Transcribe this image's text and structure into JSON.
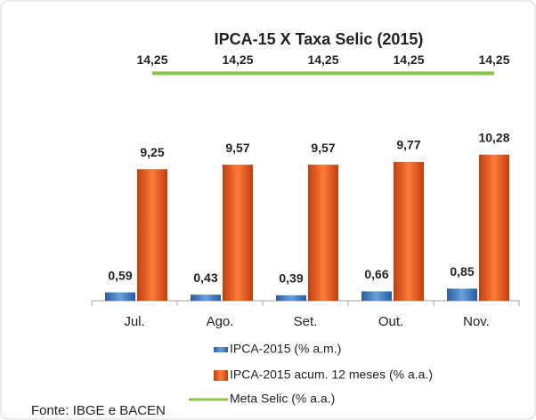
{
  "chart_data": {
    "type": "bar",
    "title": "IPCA-15 X Taxa Selic (2015)",
    "note": "Fonte: IBGE e BACEN",
    "categories": [
      "Jul.",
      "Ago.",
      "Set.",
      "Out.",
      "Nov."
    ],
    "ylim": [
      0,
      17.4
    ],
    "y2lim": [
      0,
      15.5
    ],
    "series": [
      {
        "name": "IPCA-2015 (% a.m.)",
        "color": "#3d7cc4",
        "values": [
          0.59,
          0.43,
          0.39,
          0.66,
          0.85
        ],
        "value_labels": [
          "0,59",
          "0,43",
          "0,39",
          "0,66",
          "0,85"
        ],
        "label_color": "#2e75b6"
      },
      {
        "name": "IPCA-2015 acum. 12 meses (% a.a.)",
        "color": "#f0561d",
        "values": [
          9.25,
          9.57,
          9.57,
          9.77,
          10.28
        ],
        "value_labels": [
          "9,25",
          "9,57",
          "9,57",
          "9,77",
          "10,28"
        ],
        "label_color": "#c0202a"
      },
      {
        "name": "Meta Selic (% a.a.)",
        "type": "line",
        "axis": "y2",
        "color": "#8cc152",
        "values": [
          14.25,
          14.25,
          14.25,
          14.25,
          14.25
        ],
        "value_labels": [
          "14,25",
          "14,25",
          "14,25",
          "14,25",
          "14,25"
        ],
        "label_color": "#3aae49"
      }
    ]
  }
}
